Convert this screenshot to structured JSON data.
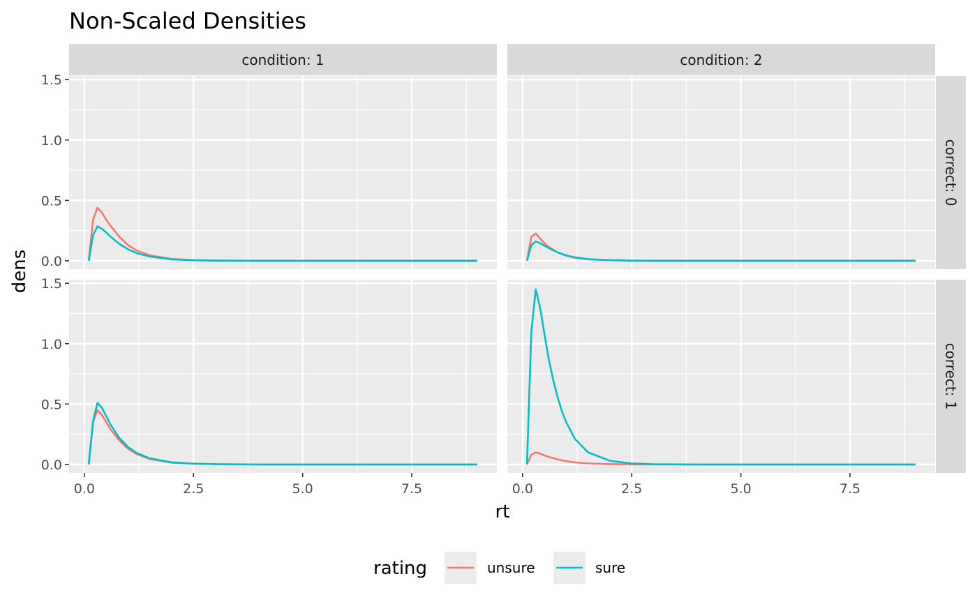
{
  "chart_data": {
    "type": "line",
    "title": "Non-Scaled Densities",
    "xlabel": "rt",
    "ylabel": "dens",
    "xlim": [
      -0.35,
      9.45
    ],
    "ylim": [
      -0.07,
      1.53
    ],
    "x_ticks": [
      0,
      2.5,
      5,
      7.5
    ],
    "x_tick_labels": [
      "0.0",
      "2.5",
      "5.0",
      "7.5"
    ],
    "y_ticks": [
      0,
      0.5,
      1,
      1.5
    ],
    "y_tick_labels": [
      "0.0",
      "0.5",
      "1.0",
      "1.5"
    ],
    "grid": true,
    "legend": {
      "title": "rating",
      "position": "bottom"
    },
    "series_styles": [
      {
        "name": "unsure",
        "color": "#F8766D"
      },
      {
        "name": "sure",
        "color": "#00BFC4"
      }
    ],
    "col_strips": [
      "condition: 1",
      "condition: 2"
    ],
    "row_strips": [
      "correct: 0",
      "correct: 1"
    ],
    "panels": [
      {
        "condition": "condition: 1",
        "correct": "correct: 0",
        "series": [
          {
            "name": "unsure",
            "x": [
              0.1,
              0.2,
              0.3,
              0.4,
              0.5,
              0.6,
              0.8,
              1.0,
              1.2,
              1.5,
              2.0,
              2.5,
              3.0,
              4.0,
              5.0,
              6.0,
              7.0,
              8.0,
              9.0
            ],
            "y": [
              0,
              0.34,
              0.44,
              0.4,
              0.34,
              0.29,
              0.2,
              0.13,
              0.085,
              0.045,
              0.015,
              0.005,
              0.002,
              0,
              0,
              0,
              0,
              0,
              0
            ]
          },
          {
            "name": "sure",
            "x": [
              0.1,
              0.2,
              0.3,
              0.4,
              0.5,
              0.6,
              0.8,
              1.0,
              1.2,
              1.5,
              2.0,
              2.5,
              3.0,
              4.0,
              5.0,
              6.0,
              7.0,
              8.0,
              9.0
            ],
            "y": [
              0,
              0.21,
              0.285,
              0.265,
              0.235,
              0.2,
              0.14,
              0.095,
              0.063,
              0.035,
              0.012,
              0.004,
              0.001,
              0,
              0,
              0,
              0,
              0,
              0
            ]
          }
        ]
      },
      {
        "condition": "condition: 2",
        "correct": "correct: 0",
        "series": [
          {
            "name": "unsure",
            "x": [
              0.1,
              0.2,
              0.3,
              0.4,
              0.5,
              0.6,
              0.8,
              1.0,
              1.2,
              1.5,
              2.0,
              2.5,
              3.0,
              4.0,
              5.0,
              6.0,
              7.0,
              8.0,
              9.0
            ],
            "y": [
              0,
              0.2,
              0.225,
              0.185,
              0.145,
              0.115,
              0.07,
              0.042,
              0.025,
              0.012,
              0.004,
              0.001,
              0,
              0,
              0,
              0,
              0,
              0,
              0
            ]
          },
          {
            "name": "sure",
            "x": [
              0.1,
              0.2,
              0.3,
              0.4,
              0.5,
              0.6,
              0.8,
              1.0,
              1.2,
              1.5,
              2.0,
              2.5,
              3.0,
              4.0,
              5.0,
              6.0,
              7.0,
              8.0,
              9.0
            ],
            "y": [
              0,
              0.13,
              0.16,
              0.145,
              0.125,
              0.105,
              0.07,
              0.045,
              0.028,
              0.014,
              0.005,
              0.001,
              0,
              0,
              0,
              0,
              0,
              0,
              0
            ]
          }
        ]
      },
      {
        "condition": "condition: 1",
        "correct": "correct: 1",
        "series": [
          {
            "name": "unsure",
            "x": [
              0.1,
              0.2,
              0.3,
              0.4,
              0.5,
              0.6,
              0.8,
              1.0,
              1.2,
              1.5,
              2.0,
              2.5,
              3.0,
              4.0,
              5.0,
              6.0,
              7.0,
              8.0,
              9.0
            ],
            "y": [
              0,
              0.35,
              0.45,
              0.41,
              0.35,
              0.29,
              0.2,
              0.13,
              0.085,
              0.045,
              0.015,
              0.005,
              0.002,
              0,
              0,
              0,
              0,
              0,
              0
            ]
          },
          {
            "name": "sure",
            "x": [
              0.1,
              0.2,
              0.3,
              0.4,
              0.5,
              0.6,
              0.8,
              1.0,
              1.2,
              1.5,
              2.0,
              2.5,
              3.0,
              4.0,
              5.0,
              6.0,
              7.0,
              8.0,
              9.0
            ],
            "y": [
              0,
              0.36,
              0.51,
              0.47,
              0.4,
              0.33,
              0.22,
              0.145,
              0.095,
              0.05,
              0.017,
              0.006,
              0.002,
              0,
              0,
              0,
              0,
              0,
              0
            ]
          }
        ]
      },
      {
        "condition": "condition: 2",
        "correct": "correct: 1",
        "series": [
          {
            "name": "unsure",
            "x": [
              0.1,
              0.2,
              0.3,
              0.4,
              0.5,
              0.6,
              0.8,
              1.0,
              1.2,
              1.5,
              2.0,
              2.5,
              3.0,
              4.0,
              5.0,
              6.0,
              7.0,
              8.0,
              9.0
            ],
            "y": [
              0,
              0.08,
              0.1,
              0.09,
              0.075,
              0.062,
              0.042,
              0.027,
              0.017,
              0.008,
              0.003,
              0.001,
              0,
              0,
              0,
              0,
              0,
              0,
              0
            ]
          },
          {
            "name": "sure",
            "x": [
              0.1,
              0.2,
              0.3,
              0.4,
              0.5,
              0.6,
              0.7,
              0.8,
              0.9,
              1.0,
              1.2,
              1.5,
              2.0,
              2.5,
              3.0,
              4.0,
              5.0,
              6.0,
              7.0,
              8.0,
              9.0
            ],
            "y": [
              0,
              1.1,
              1.45,
              1.3,
              1.08,
              0.87,
              0.7,
              0.56,
              0.44,
              0.35,
              0.21,
              0.1,
              0.03,
              0.008,
              0.002,
              0,
              0,
              0,
              0,
              0,
              0
            ]
          }
        ]
      }
    ]
  }
}
